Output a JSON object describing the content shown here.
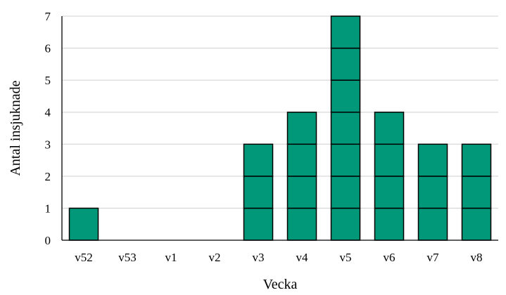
{
  "chart_data": {
    "type": "bar",
    "stacked_units": true,
    "categories": [
      "v52",
      "v53",
      "v1",
      "v2",
      "v3",
      "v4",
      "v5",
      "v6",
      "v7",
      "v8"
    ],
    "values": [
      1,
      0,
      0,
      0,
      3,
      4,
      7,
      4,
      3,
      3
    ],
    "xlabel": "Vecka",
    "ylabel": "Antal insjuknade",
    "ylim": [
      0,
      7
    ],
    "yticks": [
      0,
      1,
      2,
      3,
      4,
      5,
      6,
      7
    ],
    "grid": true,
    "legend": "none",
    "colors": {
      "bar": "#009879",
      "bar_edge": "#000000",
      "grid": "#d9d9d9",
      "axis": "#000000"
    }
  }
}
